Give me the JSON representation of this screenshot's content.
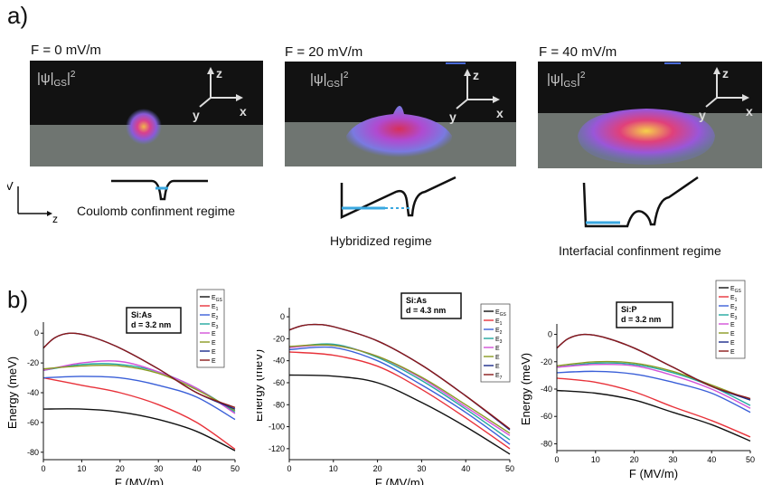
{
  "panel_a": {
    "label": "a)",
    "columns": [
      {
        "field": "F = 0 mV/m",
        "psi": "|ψ",
        "psi_sub": "GS",
        "psi_sup": "2",
        "regime": "Coulomb confinment regime"
      },
      {
        "field": "F = 20 mV/m",
        "psi": "|ψ",
        "psi_sub": "GS",
        "psi_sup": "2",
        "regime": "Hybridized regime"
      },
      {
        "field": "F = 40 mV/m",
        "psi": "|ψ",
        "psi_sub": "GS",
        "psi_sup": "2",
        "regime": "Interfacial confinment regime"
      }
    ],
    "axes_labels": {
      "z": "z",
      "y": "y",
      "x": "x"
    },
    "potential_axes": {
      "v": "V",
      "z": "z"
    }
  },
  "panel_b": {
    "label": "b)"
  },
  "colors": {
    "E_gs": "#111111",
    "E1": "#e8323a",
    "E2": "#3a5fd8",
    "E3": "#22a8a0",
    "E4": "#d252d8",
    "E5": "#8a9a22",
    "E6": "#1a2a8a",
    "E7": "#8a1a1a"
  },
  "chart_data": [
    {
      "type": "line",
      "title": "",
      "annotation": [
        "Si:As",
        "d = 3.2 nm"
      ],
      "xlabel": "F (MV/m)",
      "ylabel": "Energy (meV)",
      "xlim": [
        0,
        50
      ],
      "ylim": [
        -85,
        5
      ],
      "xticks": [
        0,
        10,
        20,
        30,
        40,
        50
      ],
      "yticks": [
        0,
        -20,
        -40,
        -60,
        -80
      ],
      "legend": [
        "E",
        "E",
        "E",
        "E",
        "E",
        "E",
        "E",
        "E"
      ],
      "legend_subs": [
        "GS",
        "1",
        "2",
        "3",
        "",
        "",
        "",
        ""
      ],
      "legend_position": "top-right",
      "series": [
        {
          "name": "E_GS",
          "color_key": "E_gs",
          "x": [
            0,
            10,
            20,
            30,
            40,
            50
          ],
          "y": [
            -51,
            -51,
            -53,
            -58,
            -66,
            -79
          ]
        },
        {
          "name": "E1",
          "color_key": "E1",
          "x": [
            0,
            10,
            20,
            30,
            40,
            50
          ],
          "y": [
            -30,
            -35,
            -40,
            -48,
            -60,
            -78
          ]
        },
        {
          "name": "E2",
          "color_key": "E2",
          "x": [
            0,
            10,
            20,
            30,
            40,
            50
          ],
          "y": [
            -30,
            -29,
            -30,
            -35,
            -43,
            -58
          ]
        },
        {
          "name": "E3",
          "color_key": "E3",
          "x": [
            0,
            10,
            20,
            30,
            40,
            50
          ],
          "y": [
            -25,
            -21,
            -21,
            -26,
            -37,
            -53
          ]
        },
        {
          "name": "E4",
          "color_key": "E4",
          "x": [
            0,
            10,
            20,
            30,
            40,
            50
          ],
          "y": [
            -25,
            -20,
            -19,
            -26,
            -37,
            -54
          ]
        },
        {
          "name": "E5",
          "color_key": "E5",
          "x": [
            0,
            10,
            20,
            30,
            40,
            50
          ],
          "y": [
            -24,
            -22,
            -22,
            -27,
            -38,
            -52
          ]
        },
        {
          "name": "E6",
          "color_key": "E6",
          "x": [
            0,
            3,
            7,
            12,
            20,
            30,
            40,
            50
          ],
          "y": [
            -10,
            -3,
            0,
            -2,
            -10,
            -24,
            -40,
            -51
          ]
        },
        {
          "name": "E7",
          "color_key": "E7",
          "x": [
            0,
            3,
            7,
            12,
            20,
            30,
            40,
            50
          ],
          "y": [
            -10,
            -3,
            0,
            -2,
            -10,
            -24,
            -40,
            -50
          ]
        }
      ]
    },
    {
      "type": "line",
      "title": "",
      "annotation": [
        "Si:As",
        "d = 4.3 nm"
      ],
      "xlabel": "F (MV/m)",
      "ylabel": "Energy (meV)",
      "xlim": [
        0,
        50
      ],
      "ylim": [
        -130,
        5
      ],
      "xticks": [
        0,
        10,
        20,
        30,
        40,
        50
      ],
      "yticks": [
        0,
        -20,
        -40,
        -60,
        -80,
        -100,
        -120
      ],
      "legend": [
        "E",
        "E",
        "E",
        "E",
        "E",
        "E",
        "E",
        "E"
      ],
      "legend_subs": [
        "GS",
        "1",
        "2",
        "3",
        "",
        "",
        "",
        "7"
      ],
      "legend_position": "top-right",
      "series": [
        {
          "name": "E_GS",
          "color_key": "E_gs",
          "x": [
            0,
            10,
            20,
            30,
            40,
            50
          ],
          "y": [
            -53,
            -54,
            -60,
            -78,
            -100,
            -125
          ]
        },
        {
          "name": "E1",
          "color_key": "E1",
          "x": [
            0,
            10,
            20,
            30,
            40,
            50
          ],
          "y": [
            -32,
            -35,
            -45,
            -66,
            -92,
            -120
          ]
        },
        {
          "name": "E2",
          "color_key": "E2",
          "x": [
            0,
            10,
            20,
            30,
            40,
            50
          ],
          "y": [
            -30,
            -28,
            -40,
            -62,
            -87,
            -116
          ]
        },
        {
          "name": "E3",
          "color_key": "E3",
          "x": [
            0,
            10,
            20,
            30,
            40,
            50
          ],
          "y": [
            -28,
            -25,
            -37,
            -58,
            -84,
            -112
          ]
        },
        {
          "name": "E4",
          "color_key": "E4",
          "x": [
            0,
            10,
            20,
            30,
            40,
            50
          ],
          "y": [
            -28,
            -26,
            -36,
            -56,
            -82,
            -108
          ]
        },
        {
          "name": "E5",
          "color_key": "E5",
          "x": [
            0,
            10,
            20,
            30,
            40,
            50
          ],
          "y": [
            -27,
            -26,
            -36,
            -55,
            -80,
            -106
          ]
        },
        {
          "name": "E6",
          "color_key": "E6",
          "x": [
            0,
            3,
            6,
            10,
            20,
            30,
            40,
            50
          ],
          "y": [
            -12,
            -8,
            -7,
            -9,
            -22,
            -44,
            -72,
            -103
          ]
        },
        {
          "name": "E7",
          "color_key": "E7",
          "x": [
            0,
            3,
            6,
            10,
            20,
            30,
            40,
            50
          ],
          "y": [
            -12,
            -8,
            -7,
            -9,
            -22,
            -44,
            -72,
            -102
          ]
        }
      ]
    },
    {
      "type": "line",
      "title": "",
      "annotation": [
        "Si:P",
        "d = 3.2 nm"
      ],
      "xlabel": "F (MV/m)",
      "ylabel": "Energy (meV)",
      "xlim": [
        0,
        50
      ],
      "ylim": [
        -85,
        5
      ],
      "xticks": [
        0,
        10,
        20,
        30,
        40,
        50
      ],
      "yticks": [
        0,
        -20,
        -40,
        -60,
        -80
      ],
      "legend": [
        "E",
        "E",
        "E",
        "E",
        "E",
        "E",
        "E",
        "E"
      ],
      "legend_subs": [
        "GS",
        "1",
        "2",
        "3",
        "",
        "",
        "",
        ""
      ],
      "legend_position": "top-right",
      "series": [
        {
          "name": "E_GS",
          "color_key": "E_gs",
          "x": [
            0,
            10,
            20,
            30,
            40,
            50
          ],
          "y": [
            -41,
            -43,
            -48,
            -57,
            -66,
            -78
          ]
        },
        {
          "name": "E1",
          "color_key": "E1",
          "x": [
            0,
            10,
            20,
            30,
            40,
            50
          ],
          "y": [
            -32,
            -35,
            -42,
            -53,
            -63,
            -75
          ]
        },
        {
          "name": "E2",
          "color_key": "E2",
          "x": [
            0,
            10,
            20,
            30,
            40,
            50
          ],
          "y": [
            -28,
            -27,
            -29,
            -35,
            -43,
            -57
          ]
        },
        {
          "name": "E3",
          "color_key": "E3",
          "x": [
            0,
            10,
            20,
            30,
            40,
            50
          ],
          "y": [
            -24,
            -21,
            -22,
            -28,
            -38,
            -52
          ]
        },
        {
          "name": "E4",
          "color_key": "E4",
          "x": [
            0,
            10,
            20,
            30,
            40,
            50
          ],
          "y": [
            -24,
            -22,
            -23,
            -30,
            -40,
            -54
          ]
        },
        {
          "name": "E5",
          "color_key": "E5",
          "x": [
            0,
            10,
            20,
            30,
            40,
            50
          ],
          "y": [
            -23,
            -20,
            -21,
            -27,
            -37,
            -48
          ]
        },
        {
          "name": "E6",
          "color_key": "E6",
          "x": [
            0,
            3,
            7,
            12,
            20,
            30,
            40,
            50
          ],
          "y": [
            -10,
            -3,
            0,
            -2,
            -10,
            -24,
            -38,
            -48
          ]
        },
        {
          "name": "E7",
          "color_key": "E7",
          "x": [
            0,
            3,
            7,
            12,
            20,
            30,
            40,
            50
          ],
          "y": [
            -10,
            -3,
            0,
            -2,
            -10,
            -24,
            -38,
            -47
          ]
        }
      ]
    }
  ]
}
